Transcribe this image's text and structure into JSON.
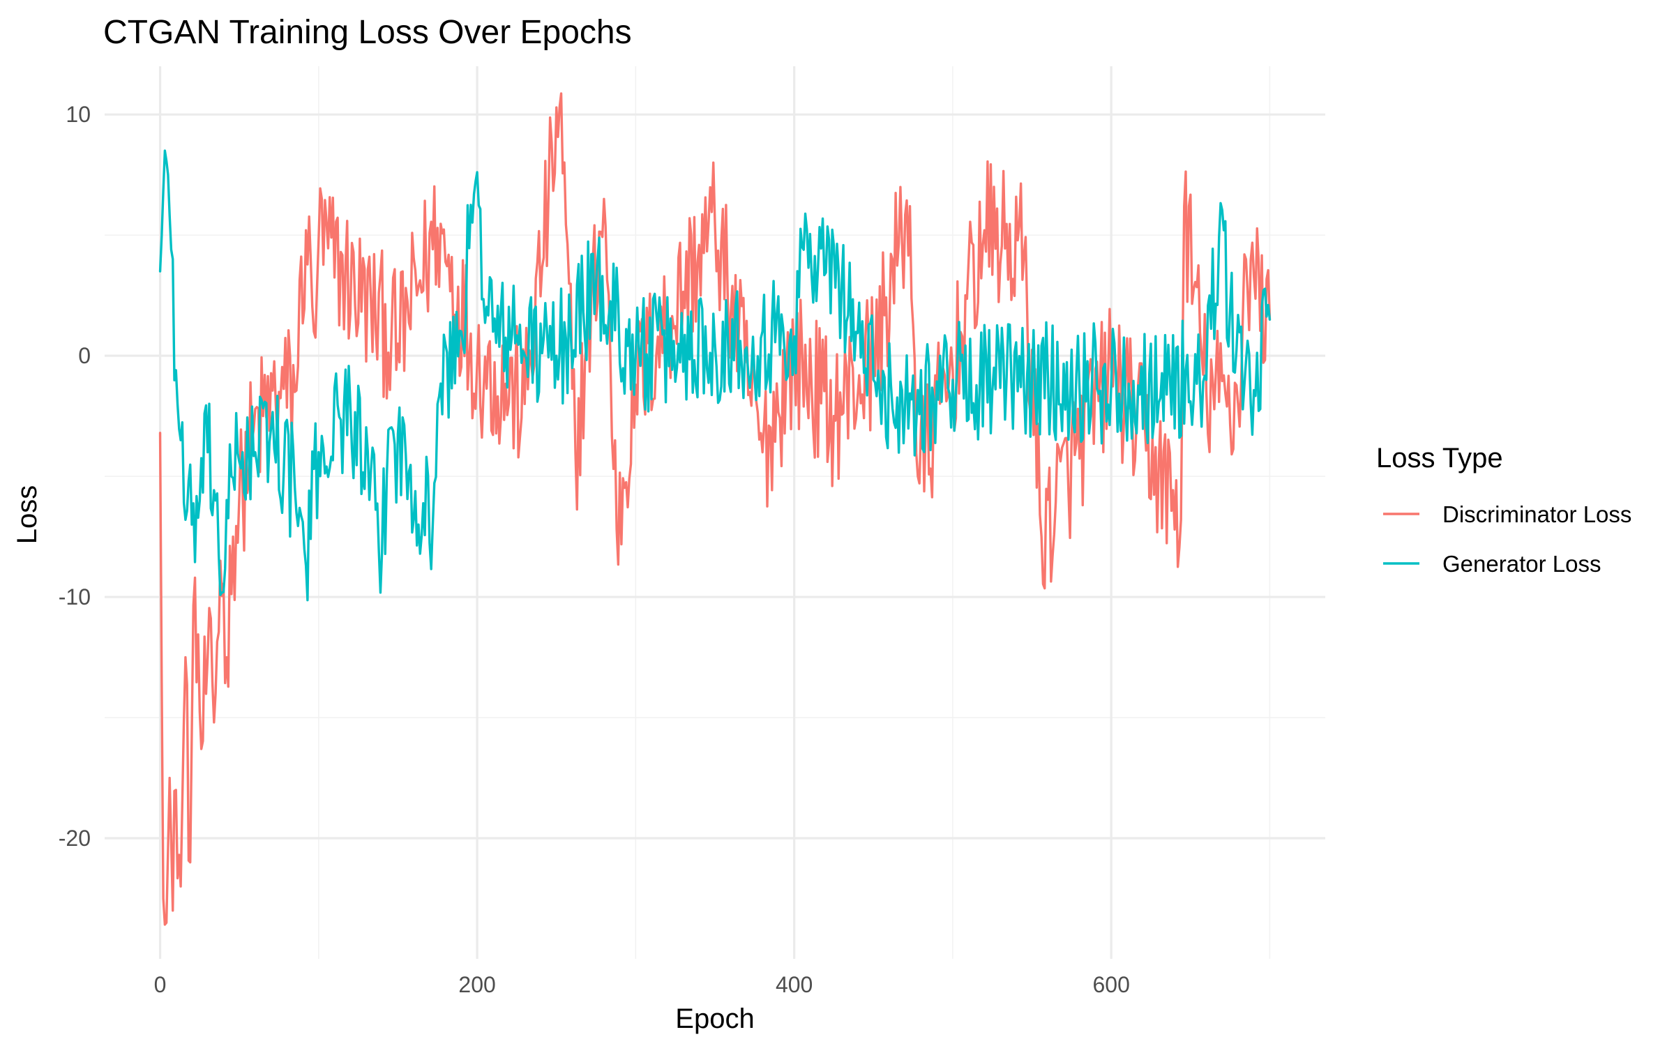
{
  "chart_data": {
    "type": "line",
    "title": "CTGAN Training Loss Over Epochs",
    "xlabel": "Epoch",
    "ylabel": "Loss",
    "xlim": [
      -35,
      735
    ],
    "ylim": [
      -25.0,
      12.0
    ],
    "x_ticks": [
      0,
      200,
      400,
      600
    ],
    "x_minor_ticks": [
      100,
      300,
      500,
      700
    ],
    "y_ticks": [
      10,
      0,
      -10,
      -20
    ],
    "y_minor_ticks": [
      5,
      -5,
      -15
    ],
    "grid": true,
    "legend": {
      "title": "Loss Type",
      "position": "right"
    },
    "sample_every": 5,
    "series": [
      {
        "name": "Discriminator Loss",
        "color": "#F8766D",
        "x_start": 0,
        "x_end": 700,
        "anchors": [
          [
            0,
            -3.2
          ],
          [
            2,
            -22.5
          ],
          [
            4,
            -23.5
          ],
          [
            6,
            -17.5
          ],
          [
            8,
            -23
          ],
          [
            10,
            -18
          ],
          [
            13,
            -22
          ],
          [
            16,
            -12.5
          ],
          [
            19,
            -21
          ],
          [
            22,
            -9.2
          ],
          [
            26,
            -16.3
          ],
          [
            30,
            -12.5
          ],
          [
            34,
            -15.2
          ],
          [
            38,
            -8.5
          ],
          [
            42,
            -12.5
          ],
          [
            46,
            -7.5
          ],
          [
            52,
            -5.5
          ],
          [
            58,
            -3.5
          ],
          [
            65,
            -2.5
          ],
          [
            75,
            -1.5
          ],
          [
            85,
            -1.5
          ],
          [
            92,
            5.2
          ],
          [
            97,
            1
          ],
          [
            100,
            4.8
          ],
          [
            150,
            0.5
          ],
          [
            175,
            5.3
          ],
          [
            200,
            -0.3
          ],
          [
            230,
            -2
          ],
          [
            252,
            10.3
          ],
          [
            262,
            -4
          ],
          [
            280,
            6.5
          ],
          [
            288,
            -7.2
          ],
          [
            300,
            -1.2
          ],
          [
            350,
            5.5
          ],
          [
            380,
            -4
          ],
          [
            400,
            0
          ],
          [
            425,
            -2.5
          ],
          [
            450,
            0
          ],
          [
            473,
            6.2
          ],
          [
            478,
            -5
          ],
          [
            500,
            -0.6
          ],
          [
            520,
            5.2
          ],
          [
            545,
            4.2
          ],
          [
            556,
            -7.5
          ],
          [
            600,
            -0.5
          ],
          [
            644,
            -6.8
          ],
          [
            646,
            6.2
          ],
          [
            660,
            -1.5
          ],
          [
            680,
            -2
          ],
          [
            685,
            4
          ],
          [
            700,
            1.5
          ]
        ],
        "noise_amplitude": 3.0
      },
      {
        "name": "Generator Loss",
        "color": "#00BFC4",
        "x_start": 0,
        "x_end": 700,
        "anchors": [
          [
            0,
            3.5
          ],
          [
            3,
            8.5
          ],
          [
            5,
            7.5
          ],
          [
            7,
            4.4
          ],
          [
            10,
            -0.6
          ],
          [
            13,
            -3.5
          ],
          [
            16,
            -6.8
          ],
          [
            20,
            -7
          ],
          [
            25,
            -6
          ],
          [
            30,
            -4
          ],
          [
            35,
            -6
          ],
          [
            40,
            -9.8
          ],
          [
            45,
            -5
          ],
          [
            52,
            -4
          ],
          [
            60,
            -4
          ],
          [
            70,
            -3
          ],
          [
            85,
            -5.5
          ],
          [
            92,
            -8.7
          ],
          [
            100,
            -4
          ],
          [
            120,
            -2
          ],
          [
            140,
            -8.1
          ],
          [
            145,
            -3
          ],
          [
            172,
            -7
          ],
          [
            175,
            -2
          ],
          [
            190,
            1
          ],
          [
            198,
            6.7
          ],
          [
            210,
            1
          ],
          [
            250,
            0
          ],
          [
            275,
            3
          ],
          [
            300,
            0
          ],
          [
            350,
            0.5
          ],
          [
            400,
            0.8
          ],
          [
            405,
            4.5
          ],
          [
            430,
            3
          ],
          [
            450,
            -1
          ],
          [
            470,
            -2
          ],
          [
            500,
            -1
          ],
          [
            550,
            -1
          ],
          [
            600,
            -1.2
          ],
          [
            660,
            -1
          ],
          [
            668,
            4.9
          ],
          [
            675,
            2
          ],
          [
            688,
            -2
          ],
          [
            700,
            1.5
          ]
        ],
        "noise_amplitude": 2.5
      }
    ]
  }
}
